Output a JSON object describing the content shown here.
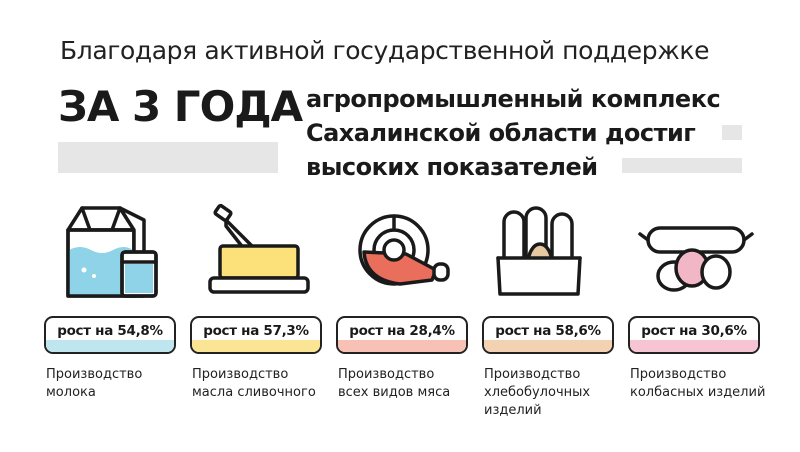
{
  "header": {
    "line1": "Благодаря активной государственной поддержке",
    "big": "ЗА 3 ГОДА",
    "sub_lines": [
      "агропромышленный комплекс",
      "Сахалинской области достиг",
      "высоких показателей"
    ]
  },
  "items": [
    {
      "badge": "рост на 54,8%",
      "desc": [
        "Производство",
        "молока"
      ],
      "icon": "milk-icon",
      "accent": "#bfe6ee"
    },
    {
      "badge": "рост на 57,3%",
      "desc": [
        "Производство",
        "масла сливочного"
      ],
      "icon": "butter-icon",
      "accent": "#fbe595"
    },
    {
      "badge": "рост на 28,4%",
      "desc": [
        "Производство",
        "всех видов мяса"
      ],
      "icon": "meat-icon",
      "accent": "#f8c1b6"
    },
    {
      "badge": "рост на 58,6%",
      "desc": [
        "Производство",
        "хлебобулочных",
        "изделий"
      ],
      "icon": "bread-icon",
      "accent": "#f3d2b2"
    },
    {
      "badge": "рост на 30,6%",
      "desc": [
        "Производство",
        "колбасных изделий"
      ],
      "icon": "sausage-icon",
      "accent": "#f7c4d3"
    }
  ],
  "colors": {
    "milk_blue": "#8fd3e8",
    "butter_yellow": "#fce07a",
    "meat_red": "#ea6e5c",
    "bread_tan": "#e7c9a1",
    "sausage_pink": "#f1b7c6"
  }
}
